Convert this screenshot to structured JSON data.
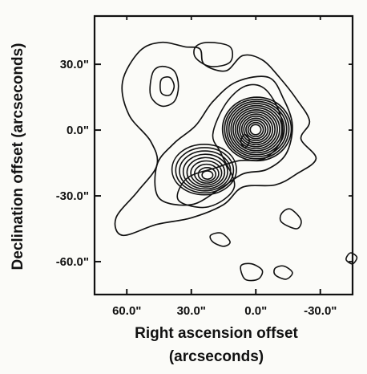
{
  "chart_data": {
    "type": "contour",
    "title": "",
    "xlabel_line1": "Right ascension offset",
    "xlabel_line2": "(arcseconds)",
    "ylabel": "Declination offset (arcseconds)",
    "x_axis_reversed": true,
    "xlim": [
      75,
      -45
    ],
    "ylim": [
      -75,
      52
    ],
    "x_ticks": [
      {
        "value": 60,
        "label": "60.0\""
      },
      {
        "value": 30,
        "label": "30.0\""
      },
      {
        "value": 0,
        "label": "0.0\""
      },
      {
        "value": -30,
        "label": "-30.0\""
      }
    ],
    "y_ticks": [
      {
        "value": 30,
        "label": "30.0\""
      },
      {
        "value": 0,
        "label": "0.0\""
      },
      {
        "value": -30,
        "label": "-30.0\""
      },
      {
        "value": -60,
        "label": "-60.0\""
      }
    ],
    "grid": false,
    "sources": [
      {
        "x": 0,
        "y": 0,
        "contour_levels": 16
      },
      {
        "x": 23,
        "y": -20,
        "contour_levels": 9
      },
      {
        "x": 42,
        "y": 20,
        "contour_levels": 2
      }
    ]
  },
  "colors": {
    "ink": "#111111",
    "background": "#fbfbf8"
  }
}
